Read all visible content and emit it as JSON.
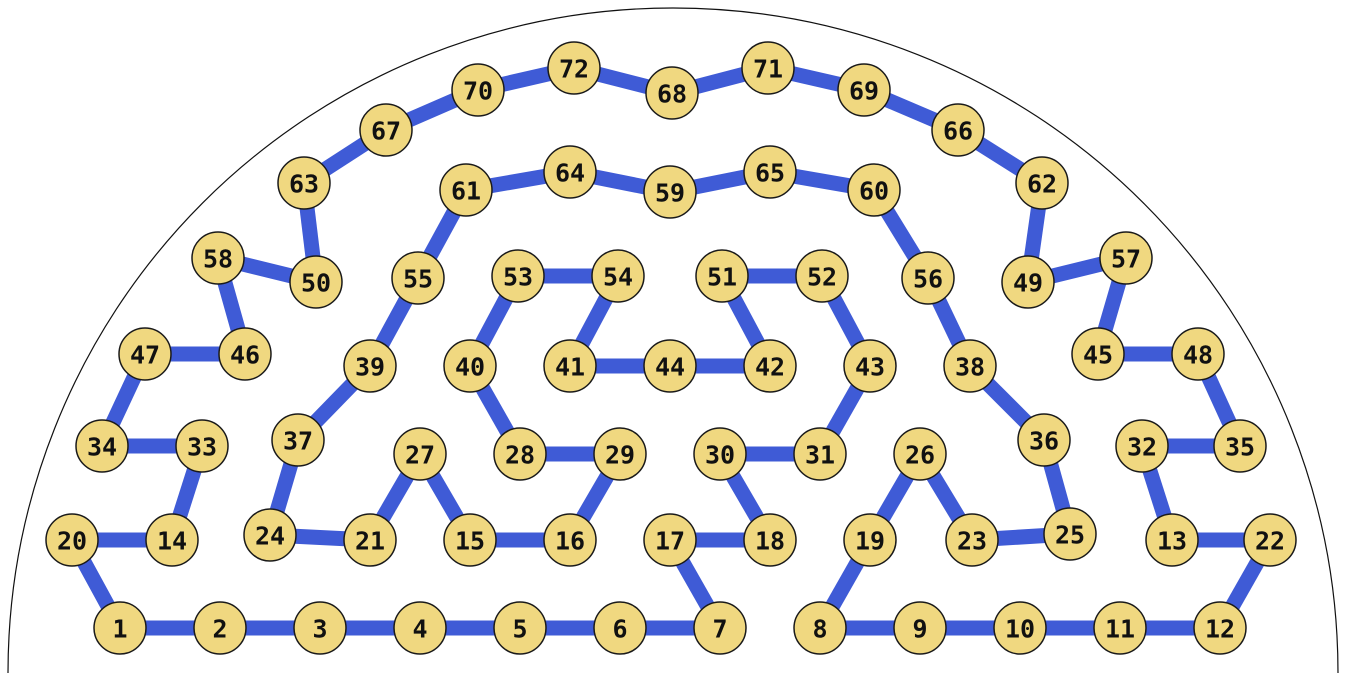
{
  "nodes": [
    "1",
    "2",
    "3",
    "4",
    "5",
    "6",
    "7",
    "8",
    "9",
    "10",
    "11",
    "12",
    "13",
    "14",
    "15",
    "16",
    "17",
    "18",
    "19",
    "20",
    "21",
    "22",
    "23",
    "24",
    "25",
    "26",
    "27",
    "28",
    "29",
    "30",
    "31",
    "32",
    "33",
    "34",
    "35",
    "36",
    "37",
    "38",
    "39",
    "40",
    "41",
    "42",
    "43",
    "44",
    "45",
    "46",
    "47",
    "48",
    "49",
    "50",
    "51",
    "52",
    "53",
    "54",
    "55",
    "56",
    "57",
    "58",
    "59",
    "60",
    "61",
    "62",
    "63",
    "64",
    "65",
    "66",
    "67",
    "68",
    "69",
    "70",
    "71",
    "72"
  ],
  "edges": [
    [
      "1",
      "2"
    ],
    [
      "2",
      "3"
    ],
    [
      "3",
      "4"
    ],
    [
      "4",
      "5"
    ],
    [
      "5",
      "6"
    ],
    [
      "6",
      "7"
    ],
    [
      "8",
      "9"
    ],
    [
      "9",
      "10"
    ],
    [
      "10",
      "11"
    ],
    [
      "11",
      "12"
    ],
    [
      "1",
      "20"
    ],
    [
      "20",
      "14"
    ],
    [
      "14",
      "33"
    ],
    [
      "33",
      "34"
    ],
    [
      "34",
      "47"
    ],
    [
      "47",
      "46"
    ],
    [
      "46",
      "58"
    ],
    [
      "58",
      "50"
    ],
    [
      "50",
      "63"
    ],
    [
      "63",
      "67"
    ],
    [
      "67",
      "70"
    ],
    [
      "70",
      "72"
    ],
    [
      "72",
      "68"
    ],
    [
      "68",
      "71"
    ],
    [
      "71",
      "69"
    ],
    [
      "69",
      "66"
    ],
    [
      "66",
      "62"
    ],
    [
      "62",
      "49"
    ],
    [
      "49",
      "57"
    ],
    [
      "57",
      "45"
    ],
    [
      "45",
      "48"
    ],
    [
      "48",
      "35"
    ],
    [
      "35",
      "32"
    ],
    [
      "32",
      "13"
    ],
    [
      "13",
      "22"
    ],
    [
      "22",
      "12"
    ],
    [
      "7",
      "17"
    ],
    [
      "17",
      "18"
    ],
    [
      "18",
      "30"
    ],
    [
      "30",
      "31"
    ],
    [
      "31",
      "43"
    ],
    [
      "43",
      "52"
    ],
    [
      "52",
      "51"
    ],
    [
      "51",
      "42"
    ],
    [
      "42",
      "44"
    ],
    [
      "44",
      "41"
    ],
    [
      "41",
      "54"
    ],
    [
      "54",
      "53"
    ],
    [
      "53",
      "40"
    ],
    [
      "40",
      "28"
    ],
    [
      "28",
      "29"
    ],
    [
      "29",
      "16"
    ],
    [
      "16",
      "15"
    ],
    [
      "15",
      "27"
    ],
    [
      "27",
      "21"
    ],
    [
      "21",
      "24"
    ],
    [
      "24",
      "37"
    ],
    [
      "37",
      "39"
    ],
    [
      "39",
      "55"
    ],
    [
      "55",
      "61"
    ],
    [
      "61",
      "64"
    ],
    [
      "64",
      "59"
    ],
    [
      "59",
      "65"
    ],
    [
      "65",
      "60"
    ],
    [
      "60",
      "56"
    ],
    [
      "56",
      "38"
    ],
    [
      "38",
      "36"
    ],
    [
      "36",
      "25"
    ],
    [
      "25",
      "23"
    ],
    [
      "23",
      "26"
    ],
    [
      "26",
      "19"
    ],
    [
      "19",
      "8"
    ]
  ]
}
